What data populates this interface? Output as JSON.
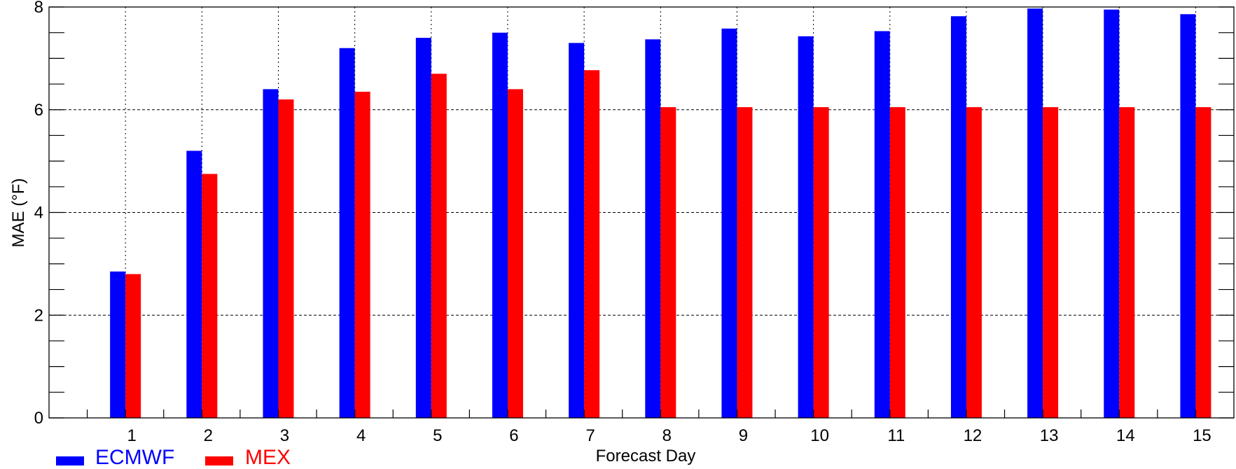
{
  "chart_data": {
    "type": "bar",
    "xlabel": "Forecast Day",
    "ylabel": "MAE (°F)",
    "ylim": [
      0,
      8
    ],
    "y_ticks": [
      0,
      2,
      4,
      6,
      8
    ],
    "y_minor_step": 0.5,
    "grid": true,
    "legend_position": "bottom-left",
    "categories": [
      "1",
      "2",
      "3",
      "4",
      "5",
      "6",
      "7",
      "8",
      "9",
      "10",
      "11",
      "12",
      "13",
      "14",
      "15"
    ],
    "series": [
      {
        "name": "ECMWF",
        "color": "#0000ff",
        "values": [
          2.85,
          5.2,
          6.4,
          7.2,
          7.4,
          7.5,
          7.3,
          7.37,
          7.58,
          7.43,
          7.53,
          7.82,
          7.97,
          7.95,
          7.86
        ]
      },
      {
        "name": "MEX",
        "color": "#ff0000",
        "values": [
          2.8,
          4.75,
          6.2,
          6.35,
          6.7,
          6.4,
          6.77,
          6.05,
          6.05,
          6.05,
          6.05,
          6.05,
          6.05,
          6.05,
          6.05
        ]
      }
    ]
  }
}
